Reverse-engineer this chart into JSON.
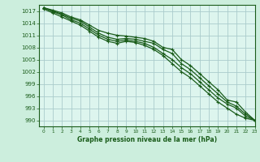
{
  "title": "Graphe pression niveau de la mer (hPa)",
  "background_color": "#cceedd",
  "plot_bg_color": "#ddf5ee",
  "grid_color": "#aacccc",
  "line_color": "#1a5c1a",
  "xlim": [
    -0.5,
    23
  ],
  "ylim": [
    988.5,
    1018.5
  ],
  "yticks": [
    990,
    993,
    996,
    999,
    1002,
    1005,
    1008,
    1011,
    1014,
    1017
  ],
  "xticks": [
    0,
    1,
    2,
    3,
    4,
    5,
    6,
    7,
    8,
    9,
    10,
    11,
    12,
    13,
    14,
    15,
    16,
    17,
    18,
    19,
    20,
    21,
    22,
    23
  ],
  "series": [
    [
      1017.8,
      1017.2,
      1016.5,
      1015.5,
      1014.8,
      1013.5,
      1012.2,
      1011.5,
      1011.0,
      1010.8,
      1010.5,
      1010.2,
      1009.5,
      1008.0,
      1007.5,
      1005.0,
      1003.5,
      1001.5,
      999.5,
      997.5,
      995.0,
      994.5,
      992.0,
      990.0
    ],
    [
      1017.8,
      1017.0,
      1016.2,
      1015.2,
      1014.5,
      1013.0,
      1011.5,
      1010.5,
      1010.0,
      1010.2,
      1010.0,
      1009.5,
      1009.0,
      1007.5,
      1006.5,
      1004.0,
      1002.5,
      1000.5,
      998.5,
      996.5,
      994.5,
      993.5,
      991.5,
      990.0
    ],
    [
      1017.8,
      1016.8,
      1016.0,
      1014.8,
      1014.0,
      1012.5,
      1011.0,
      1010.0,
      1009.5,
      1009.8,
      1009.5,
      1009.0,
      1008.0,
      1006.5,
      1005.0,
      1003.0,
      1001.5,
      999.5,
      997.5,
      995.5,
      994.0,
      993.0,
      991.0,
      990.0
    ],
    [
      1017.5,
      1016.5,
      1015.5,
      1014.5,
      1013.5,
      1012.0,
      1010.5,
      1009.5,
      1009.0,
      1009.5,
      1009.2,
      1008.5,
      1007.5,
      1006.0,
      1004.0,
      1002.0,
      1000.5,
      998.5,
      996.5,
      994.5,
      993.0,
      991.5,
      990.5,
      990.0
    ]
  ]
}
